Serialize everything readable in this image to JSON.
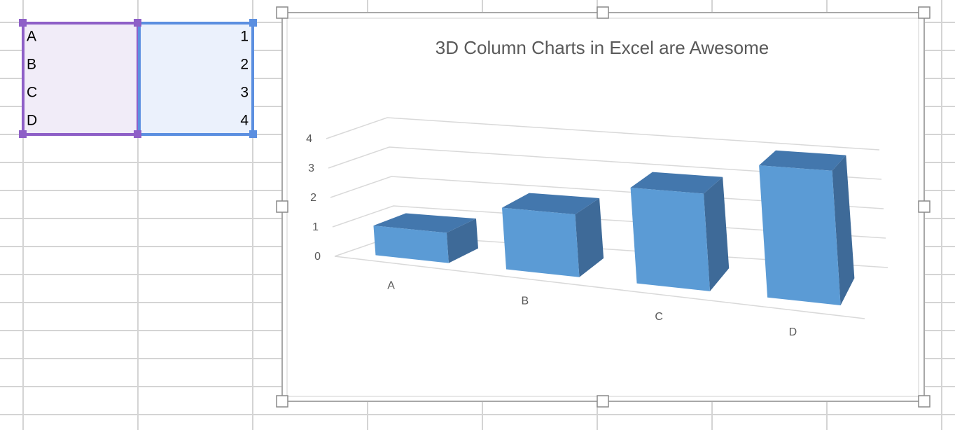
{
  "sheet": {
    "rows": [
      [
        "A",
        1
      ],
      [
        "B",
        2
      ],
      [
        "C",
        3
      ],
      [
        "D",
        4
      ]
    ]
  },
  "chart_data": {
    "type": "bar3d",
    "title": "3D Column Charts in Excel are Awesome",
    "categories": [
      "A",
      "B",
      "C",
      "D"
    ],
    "values": [
      1,
      2,
      3,
      4
    ],
    "color": "#5b9bd5",
    "ylim": [
      0,
      4
    ],
    "yticks": [
      0,
      1,
      2,
      3,
      4
    ],
    "grid": true
  }
}
